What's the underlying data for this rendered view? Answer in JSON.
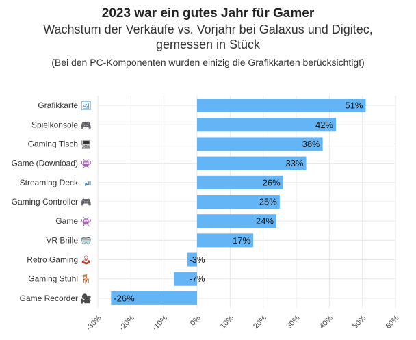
{
  "chart_data": {
    "type": "bar",
    "orientation": "horizontal",
    "title": "2023 war ein gutes Jahr für Gamer",
    "subtitle": "Wachstum der Verkäufe vs. Vorjahr bei Galaxus und Digitec, gemessen in Stück",
    "subtitle_lines": [
      "Wachstum der Verkäufe vs. Vorjahr bei Galaxus und Digitec,",
      "gemessen in Stück"
    ],
    "note": "(Bei den PC-Komponenten wurden einizig die Grafikkarten berücksichtigt)",
    "categories": [
      "Grafikkarte",
      "Spielkonsole",
      "Gaming Tisch",
      "Game (Download)",
      "Streaming Deck",
      "Gaming Controller",
      "Game",
      "VR Brille",
      "Retro Gaming",
      "Gaming Stuhl",
      "Game Recorder"
    ],
    "category_icons": [
      "framed-picture-icon",
      "video-game-controller-icon",
      "desktop-computer-icon",
      "alien-monster-icon",
      "play-pause-button-icon",
      "video-game-controller-icon",
      "alien-monster-icon",
      "goggles-icon",
      "joystick-icon",
      "chair-icon",
      "movie-camera-icon"
    ],
    "values": [
      51,
      42,
      38,
      33,
      26,
      25,
      24,
      17,
      -3,
      -7,
      -26
    ],
    "value_labels": [
      "51%",
      "42%",
      "38%",
      "33%",
      "26%",
      "25%",
      "24%",
      "17%",
      "-3%",
      "-7%",
      "-26%"
    ],
    "xlim": [
      -30,
      60
    ],
    "xticks": [
      -30,
      -20,
      -10,
      0,
      10,
      20,
      30,
      40,
      50,
      60
    ],
    "xtick_labels": [
      "-30%",
      "-20%",
      "-10%",
      "0%",
      "10%",
      "20%",
      "30%",
      "40%",
      "50%",
      "60%"
    ],
    "xlabel": "",
    "ylabel": "",
    "grid": true,
    "bar_color": "#64b5f6",
    "grid_color": "#e6e6e6"
  }
}
